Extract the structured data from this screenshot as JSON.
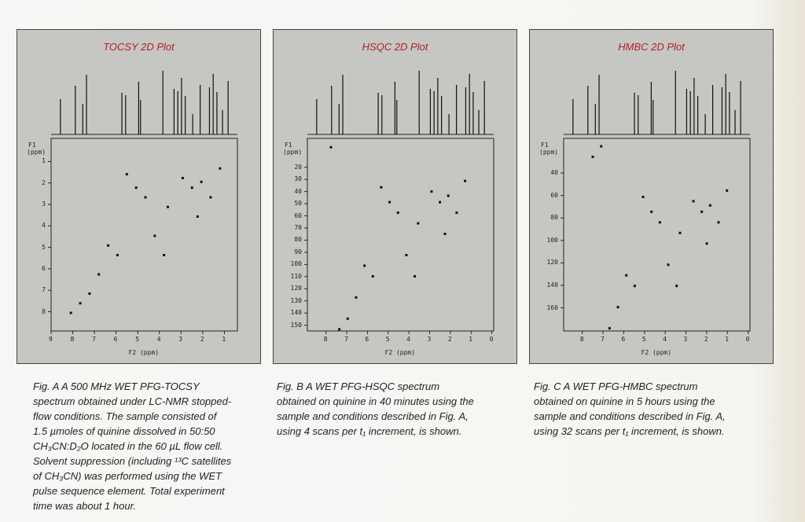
{
  "panels": [
    {
      "title": "TOCSY  2D Plot",
      "f1_label": [
        "F1",
        "(ppm)"
      ],
      "f2_label": "F2 (ppm)",
      "f1_ticks": [
        "1",
        "2",
        "3",
        "4",
        "5",
        "6",
        "7",
        "8"
      ],
      "f2_ticks": [
        "9",
        "8",
        "7",
        "6",
        "5",
        "4",
        "3",
        "2",
        "1"
      ],
      "caption": [
        "Fig. A   A 500 MHz WET PFG-TOCSY",
        "spectrum obtained under LC-NMR stopped-",
        "flow conditions. The sample consisted of",
        "1.5 µmoles of quinine dissolved in 50:50",
        "CH₃CN:D₂O located in the 60 µL flow cell.",
        "Solvent suppression (including ¹³C satellites",
        "of CH₃CN) was performed using the WET",
        "pulse sequence element. Total experiment",
        "time was about 1 hour."
      ]
    },
    {
      "title": "HSQC  2D Plot",
      "f1_label": [
        "F1",
        "(ppm)"
      ],
      "f2_label": "F2 (ppm)",
      "f1_ticks": [
        "20",
        "30",
        "40",
        "50",
        "60",
        "70",
        "80",
        "90",
        "100",
        "110",
        "120",
        "130",
        "140",
        "150"
      ],
      "f2_ticks": [
        "8",
        "7",
        "6",
        "5",
        "4",
        "3",
        "2",
        "1",
        "0"
      ],
      "caption": [
        "Fig. B   A WET PFG-HSQC spectrum",
        "obtained on quinine in 40 minutes using the",
        "sample and conditions described in Fig. A,",
        "using 4 scans per t₁ increment, is shown."
      ]
    },
    {
      "title": "HMBC  2D Plot",
      "f1_label": [
        "F1",
        "(ppm)"
      ],
      "f2_label": "F2 (ppm)",
      "f1_ticks": [
        "40",
        "60",
        "80",
        "100",
        "120",
        "140",
        "160"
      ],
      "f2_ticks": [
        "8",
        "7",
        "6",
        "5",
        "4",
        "3",
        "2",
        "1",
        "0"
      ],
      "caption": [
        "Fig. C   A WET PFG-HMBC spectrum",
        "obtained on quinine in 5 hours using the",
        "sample and conditions described in Fig. A,",
        "using 32 scans per t₁ increment, is shown."
      ]
    }
  ]
}
